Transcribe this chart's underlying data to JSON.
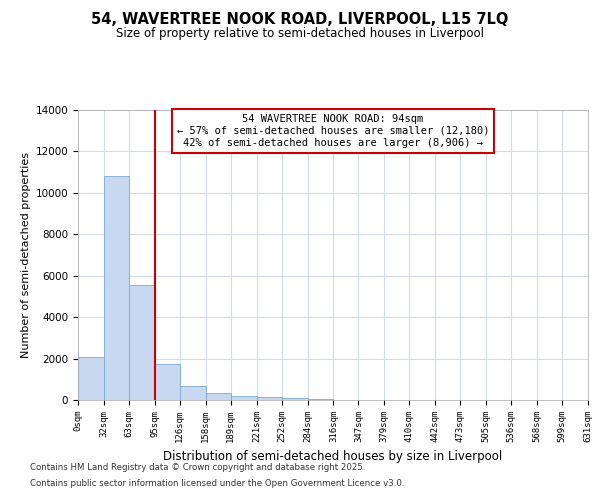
{
  "title1": "54, WAVERTREE NOOK ROAD, LIVERPOOL, L15 7LQ",
  "title2": "Size of property relative to semi-detached houses in Liverpool",
  "xlabel": "Distribution of semi-detached houses by size in Liverpool",
  "ylabel": "Number of semi-detached properties",
  "annotation_title": "54 WAVERTREE NOOK ROAD: 94sqm",
  "annotation_line1": "← 57% of semi-detached houses are smaller (12,180)",
  "annotation_line2": "42% of semi-detached houses are larger (8,906) →",
  "property_size_sqm": 94,
  "bin_edges": [
    0,
    32,
    63,
    95,
    126,
    158,
    189,
    221,
    252,
    284,
    316,
    347,
    379,
    410,
    442,
    473,
    505,
    536,
    568,
    599,
    631
  ],
  "bin_labels": [
    "0sqm",
    "32sqm",
    "63sqm",
    "95sqm",
    "126sqm",
    "158sqm",
    "189sqm",
    "221sqm",
    "252sqm",
    "284sqm",
    "316sqm",
    "347sqm",
    "379sqm",
    "410sqm",
    "442sqm",
    "473sqm",
    "505sqm",
    "536sqm",
    "568sqm",
    "599sqm",
    "631sqm"
  ],
  "bar_heights": [
    2100,
    10800,
    5550,
    1750,
    700,
    330,
    200,
    150,
    100,
    50,
    20,
    0,
    0,
    0,
    0,
    0,
    0,
    0,
    0,
    0
  ],
  "bar_color": "#c8d8f0",
  "bar_edge_color": "#7aaad0",
  "vline_x": 95,
  "vline_color": "#cc0000",
  "ylim": [
    0,
    14000
  ],
  "background_color": "#ffffff",
  "plot_bg_color": "#ffffff",
  "grid_color": "#d0dce8",
  "footnote1": "Contains HM Land Registry data © Crown copyright and database right 2025.",
  "footnote2": "Contains public sector information licensed under the Open Government Licence v3.0.",
  "yticks": [
    0,
    2000,
    4000,
    6000,
    8000,
    10000,
    12000,
    14000
  ]
}
